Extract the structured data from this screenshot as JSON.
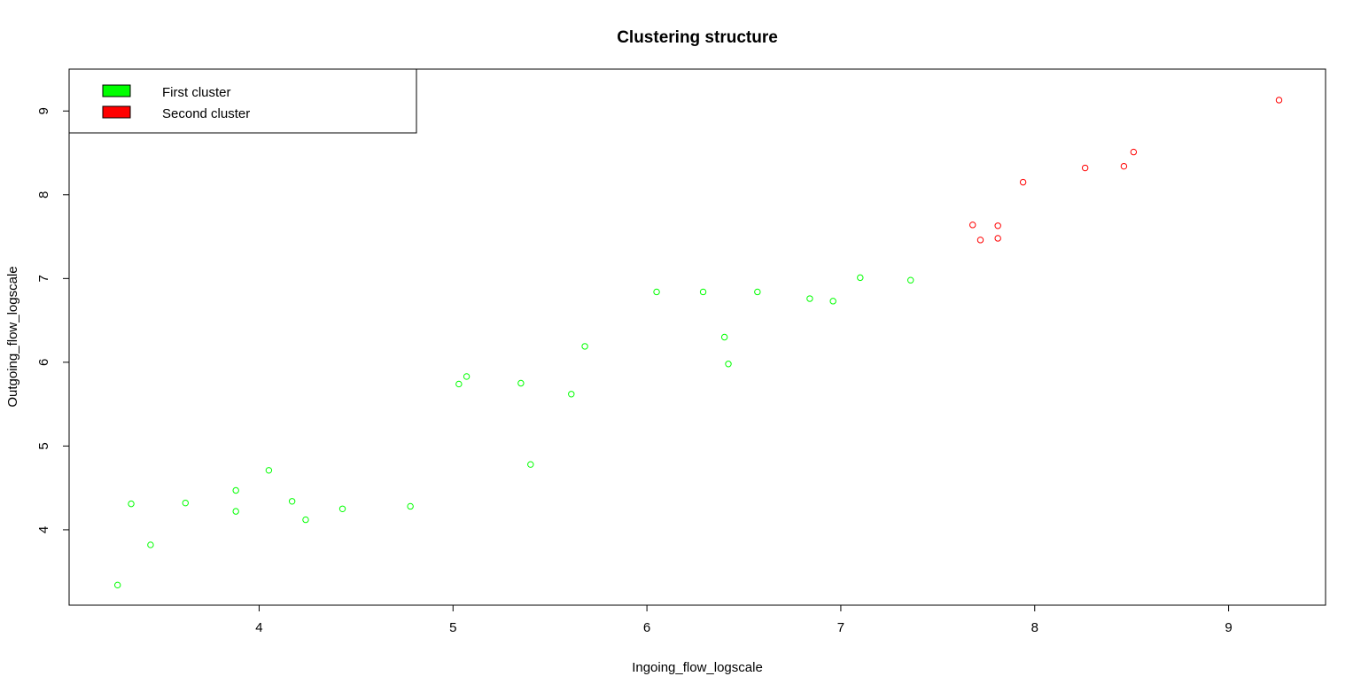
{
  "chart_data": {
    "type": "scatter",
    "title": "Clustering structure",
    "xlabel": "Ingoing_flow_logscale",
    "ylabel": "Outgoing_flow_logscale",
    "xlim": [
      3.02,
      9.5
    ],
    "ylim": [
      3.1,
      9.5
    ],
    "x_ticks": [
      4,
      5,
      6,
      7,
      8,
      9
    ],
    "y_ticks": [
      4,
      5,
      6,
      7,
      8,
      9
    ],
    "grid": false,
    "legend_position": "top-left",
    "series": [
      {
        "name": "First cluster",
        "color": "#00ff00",
        "marker": "open-circle",
        "points": [
          {
            "x": 3.27,
            "y": 3.34
          },
          {
            "x": 3.34,
            "y": 4.31
          },
          {
            "x": 3.44,
            "y": 3.82
          },
          {
            "x": 3.62,
            "y": 4.32
          },
          {
            "x": 3.88,
            "y": 4.47
          },
          {
            "x": 3.88,
            "y": 4.22
          },
          {
            "x": 4.05,
            "y": 4.71
          },
          {
            "x": 4.17,
            "y": 4.34
          },
          {
            "x": 4.24,
            "y": 4.12
          },
          {
            "x": 4.43,
            "y": 4.25
          },
          {
            "x": 4.78,
            "y": 4.28
          },
          {
            "x": 5.03,
            "y": 5.74
          },
          {
            "x": 5.07,
            "y": 5.83
          },
          {
            "x": 5.35,
            "y": 5.75
          },
          {
            "x": 5.4,
            "y": 4.78
          },
          {
            "x": 5.61,
            "y": 5.62
          },
          {
            "x": 5.68,
            "y": 6.19
          },
          {
            "x": 6.05,
            "y": 6.84
          },
          {
            "x": 6.29,
            "y": 6.84
          },
          {
            "x": 6.4,
            "y": 6.3
          },
          {
            "x": 6.42,
            "y": 5.98
          },
          {
            "x": 6.57,
            "y": 6.84
          },
          {
            "x": 6.84,
            "y": 6.76
          },
          {
            "x": 6.96,
            "y": 6.73
          },
          {
            "x": 7.1,
            "y": 7.01
          },
          {
            "x": 7.36,
            "y": 6.98
          }
        ]
      },
      {
        "name": "Second cluster",
        "color": "#ff0000",
        "marker": "open-circle",
        "points": [
          {
            "x": 7.68,
            "y": 7.64
          },
          {
            "x": 7.72,
            "y": 7.46
          },
          {
            "x": 7.81,
            "y": 7.63
          },
          {
            "x": 7.81,
            "y": 7.48
          },
          {
            "x": 7.94,
            "y": 8.15
          },
          {
            "x": 8.26,
            "y": 8.32
          },
          {
            "x": 8.46,
            "y": 8.34
          },
          {
            "x": 8.51,
            "y": 8.51
          },
          {
            "x": 9.26,
            "y": 9.13
          }
        ]
      }
    ]
  }
}
